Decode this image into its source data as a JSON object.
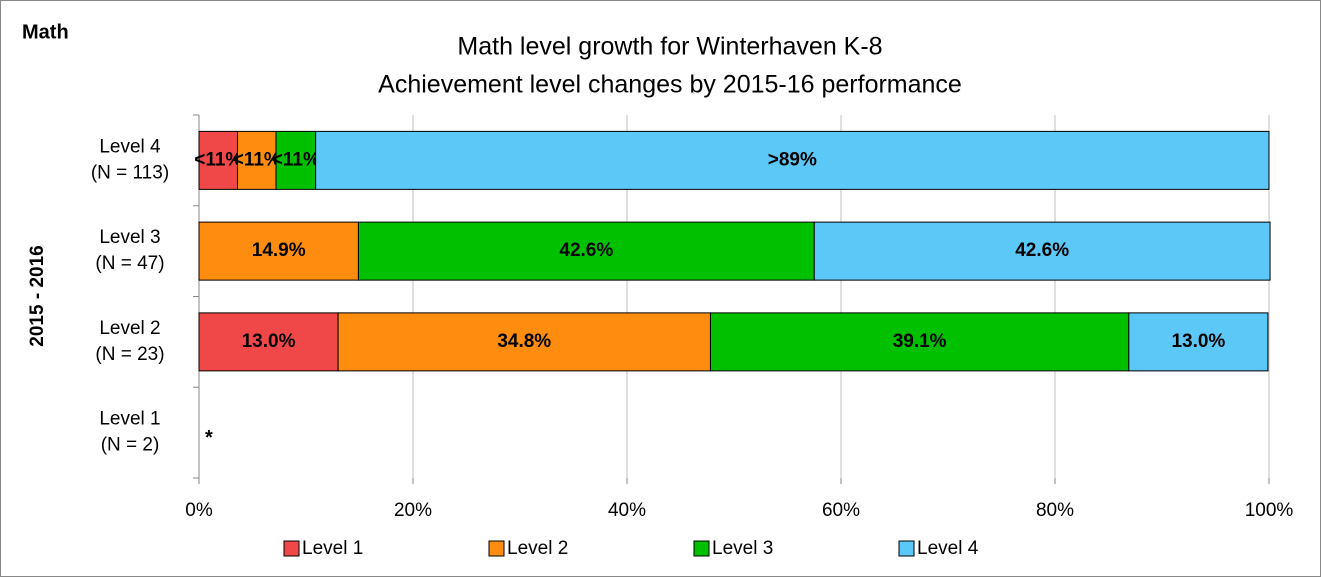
{
  "chart_data": {
    "type": "stacked_barh",
    "corner_label": "Math",
    "title": "Math level growth for Winterhaven K-8",
    "subtitle": "Achievement level changes by 2015-16 performance",
    "ylabel": "2015 - 2016",
    "categories": [
      "Level 4\n(N = 113)",
      "Level 3\n(N = 47)",
      "Level 2\n(N = 23)",
      "Level 1\n(N = 2)"
    ],
    "series": [
      {
        "name": "Level 1",
        "color": "#f04848",
        "values": [
          3.6,
          0,
          13.0,
          null
        ],
        "value_labels": [
          "<11%",
          null,
          "13.0%",
          null
        ]
      },
      {
        "name": "Level 2",
        "color": "#fd8c0f",
        "values": [
          3.6,
          14.9,
          34.8,
          null
        ],
        "value_labels": [
          "<11%",
          "14.9%",
          "34.8%",
          null
        ]
      },
      {
        "name": "Level 3",
        "color": "#00c000",
        "values": [
          3.7,
          42.6,
          39.1,
          null
        ],
        "value_labels": [
          "<11%",
          "42.6%",
          "39.1%",
          null
        ]
      },
      {
        "name": "Level 4",
        "color": "#5bc8f8",
        "values": [
          89.1,
          42.6,
          13.0,
          null
        ],
        "value_labels": [
          ">89%",
          "42.6%",
          "13.0%",
          null
        ]
      }
    ],
    "annotations": [
      {
        "category": 3,
        "text": "*"
      }
    ],
    "xlim": [
      0,
      100
    ],
    "xticks": [
      {
        "value": 0,
        "label": "0%"
      },
      {
        "value": 20,
        "label": "20%"
      },
      {
        "value": 40,
        "label": "40%"
      },
      {
        "value": 60,
        "label": "60%"
      },
      {
        "value": 80,
        "label": "80%"
      },
      {
        "value": 100,
        "label": "100%"
      }
    ],
    "grid": true,
    "legend": "bottom"
  }
}
